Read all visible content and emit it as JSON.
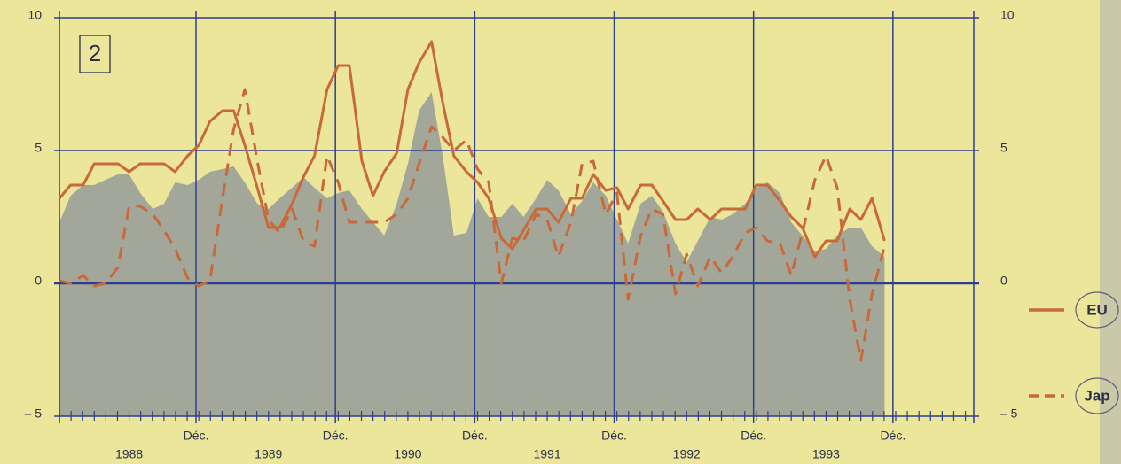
{
  "chart_data": {
    "type": "line",
    "panel_label": "2",
    "x": [
      1988.0,
      1988.08,
      1988.17,
      1988.25,
      1988.33,
      1988.42,
      1988.5,
      1988.58,
      1988.67,
      1988.75,
      1988.83,
      1988.92,
      1989.0,
      1989.08,
      1989.17,
      1989.25,
      1989.33,
      1989.42,
      1989.5,
      1989.58,
      1989.67,
      1989.75,
      1989.83,
      1989.92,
      1990.0,
      1990.08,
      1990.17,
      1990.25,
      1990.33,
      1990.42,
      1990.5,
      1990.58,
      1990.67,
      1990.75,
      1990.83,
      1990.92,
      1991.0,
      1991.08,
      1991.17,
      1991.25,
      1991.33,
      1991.42,
      1991.5,
      1991.58,
      1991.67,
      1991.75,
      1991.83,
      1991.92,
      1992.0,
      1992.08,
      1992.17,
      1992.25,
      1992.33,
      1992.42,
      1992.5,
      1992.58,
      1992.67,
      1992.75,
      1992.83,
      1992.92,
      1993.0,
      1993.08,
      1993.17,
      1993.25,
      1993.33,
      1993.42,
      1993.5,
      1993.58,
      1993.67,
      1993.75,
      1993.83,
      1993.92
    ],
    "series": [
      {
        "color": "#a3a79a",
        "style": "area",
        "values": [
          2.3,
          3.3,
          3.7,
          3.7,
          3.9,
          4.1,
          4.1,
          3.4,
          2.8,
          3.0,
          3.8,
          3.7,
          3.9,
          4.2,
          4.3,
          4.4,
          3.8,
          3.0,
          2.8,
          3.2,
          3.6,
          4.0,
          3.6,
          3.2,
          3.4,
          3.5,
          2.8,
          2.3,
          1.8,
          3.0,
          4.5,
          6.5,
          7.2,
          4.8,
          1.8,
          1.9,
          3.2,
          2.5,
          2.5,
          3.0,
          2.5,
          3.2,
          3.9,
          3.5,
          2.6,
          3.1,
          3.8,
          3.3,
          2.4,
          1.5,
          3.0,
          3.3,
          2.7,
          1.5,
          0.8,
          1.6,
          2.5,
          2.4,
          2.6,
          3.0,
          3.6,
          3.8,
          3.4,
          2.3,
          1.8,
          1.2,
          1.3,
          1.8,
          2.1,
          2.1,
          1.4,
          1.0
        ]
      },
      {
        "name": "EU",
        "color": "#c8693a",
        "style": "solid",
        "values": [
          3.2,
          3.7,
          3.7,
          4.5,
          4.5,
          4.5,
          4.2,
          4.5,
          4.5,
          4.5,
          4.2,
          4.8,
          5.2,
          6.1,
          6.5,
          6.5,
          5.2,
          3.6,
          2.1,
          2.1,
          3.0,
          4.0,
          4.8,
          7.3,
          8.2,
          8.2,
          4.6,
          3.3,
          4.2,
          4.9,
          7.3,
          8.3,
          9.1,
          6.8,
          4.8,
          4.2,
          3.8,
          3.2,
          1.7,
          1.3,
          2.0,
          2.8,
          2.8,
          2.3,
          3.2,
          3.2,
          4.1,
          3.5,
          3.6,
          2.8,
          3.7,
          3.7,
          3.1,
          2.4,
          2.4,
          2.8,
          2.4,
          2.8,
          2.8,
          2.8,
          3.7,
          3.7,
          3.1,
          2.5,
          2.1,
          1.0,
          1.6,
          1.6,
          2.8,
          2.4,
          3.2,
          1.6
        ]
      },
      {
        "name": "Jap",
        "color": "#c8693a",
        "style": "dashed",
        "values": [
          0.1,
          0.0,
          0.3,
          -0.1,
          0.0,
          0.6,
          2.9,
          2.9,
          2.6,
          2.0,
          1.3,
          0.2,
          -0.1,
          0.1,
          3.2,
          5.8,
          7.3,
          4.6,
          2.4,
          1.9,
          2.8,
          1.6,
          1.4,
          4.8,
          3.8,
          2.3,
          2.3,
          2.3,
          2.3,
          2.6,
          3.2,
          4.5,
          5.9,
          5.5,
          5.0,
          5.4,
          4.3,
          3.8,
          0.0,
          1.7,
          1.6,
          2.6,
          2.4,
          1.0,
          2.3,
          4.5,
          4.6,
          2.6,
          3.4,
          -0.6,
          1.8,
          2.8,
          2.6,
          -0.4,
          1.1,
          -0.1,
          1.0,
          0.4,
          1.0,
          1.9,
          2.1,
          1.6,
          1.5,
          0.3,
          1.9,
          3.9,
          4.8,
          3.6,
          -0.6,
          -2.9,
          -0.4,
          1.4
        ]
      }
    ],
    "xlim": [
      1988.0,
      1994.56
    ],
    "xticks": [
      {
        "value": 1988.98,
        "label": "Déc."
      },
      {
        "value": 1989.98,
        "label": "Déc."
      },
      {
        "value": 1990.98,
        "label": "Déc."
      },
      {
        "value": 1991.98,
        "label": "Déc."
      },
      {
        "value": 1992.98,
        "label": "Déc."
      },
      {
        "value": 1993.98,
        "label": "Déc."
      }
    ],
    "year_labels": [
      {
        "value": 1988.5,
        "label": "1988"
      },
      {
        "value": 1989.5,
        "label": "1989"
      },
      {
        "value": 1990.5,
        "label": "1990"
      },
      {
        "value": 1991.5,
        "label": "1991"
      },
      {
        "value": 1992.5,
        "label": "1992"
      },
      {
        "value": 1993.5,
        "label": "1993"
      }
    ],
    "ylim": [
      -5,
      10
    ],
    "yticks": [
      {
        "value": -5,
        "label": "– 5"
      },
      0,
      5,
      10
    ],
    "grid": true,
    "grid_color": "#2c3f8e"
  }
}
